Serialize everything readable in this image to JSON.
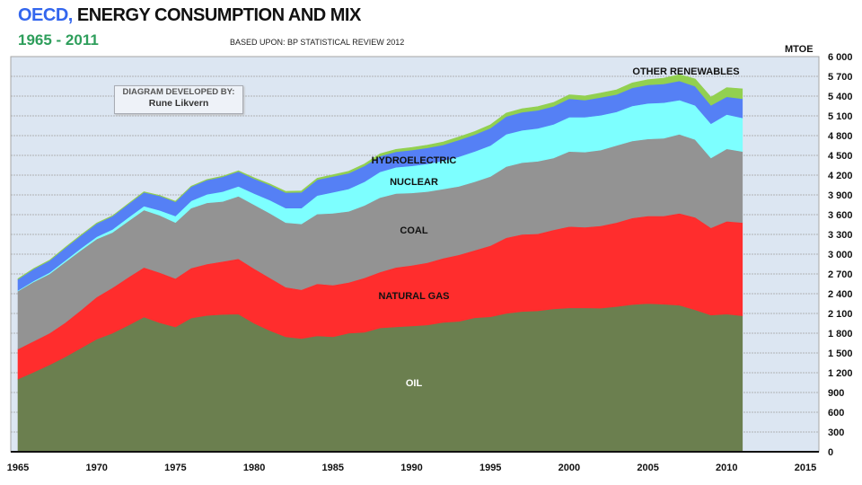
{
  "header": {
    "title_highlight": "OECD,",
    "title_rest": " ENERGY CONSUMPTION AND MIX",
    "period": "1965 - 2011",
    "source": "BASED UPON: BP STATISTICAL REVIEW 2012"
  },
  "credit": {
    "label": "DIAGRAM DEVELOPED BY:",
    "name": "Rune Likvern"
  },
  "chart_data": {
    "type": "area",
    "stacked": true,
    "title": "OECD, ENERGY CONSUMPTION AND MIX 1965 - 2011",
    "ylabel": "MTOE",
    "xlabel": "",
    "xlim": [
      1965,
      2015
    ],
    "ylim": [
      0,
      6000
    ],
    "x_ticks": [
      "1965",
      "1970",
      "1975",
      "1980",
      "1985",
      "1990",
      "1995",
      "2000",
      "2005",
      "2010",
      "2015"
    ],
    "y_ticks": [
      "0",
      "300",
      "600",
      "900",
      "1 200",
      "1 500",
      "1 800",
      "2 100",
      "2 400",
      "2 700",
      "3 000",
      "3 300",
      "3 600",
      "3 900",
      "4 200",
      "4 500",
      "4 800",
      "5 100",
      "5 400",
      "5 700",
      "6 000"
    ],
    "grid": true,
    "x": [
      1965,
      1966,
      1967,
      1968,
      1969,
      1970,
      1971,
      1972,
      1973,
      1974,
      1975,
      1976,
      1977,
      1978,
      1979,
      1980,
      1981,
      1982,
      1983,
      1984,
      1985,
      1986,
      1987,
      1988,
      1989,
      1990,
      1991,
      1992,
      1993,
      1994,
      1995,
      1996,
      1997,
      1998,
      1999,
      2000,
      2001,
      2002,
      2003,
      2004,
      2005,
      2006,
      2007,
      2008,
      2009,
      2010,
      2011
    ],
    "series": [
      {
        "name": "OIL",
        "color": "#6b7f4f",
        "values": [
          1105,
          1210,
          1320,
          1440,
          1575,
          1710,
          1800,
          1920,
          2045,
          1960,
          1895,
          2030,
          2070,
          2085,
          2090,
          1950,
          1840,
          1745,
          1720,
          1760,
          1745,
          1800,
          1815,
          1880,
          1895,
          1910,
          1925,
          1965,
          1980,
          2035,
          2050,
          2100,
          2130,
          2140,
          2170,
          2185,
          2185,
          2180,
          2205,
          2235,
          2250,
          2240,
          2225,
          2155,
          2075,
          2090,
          2065
        ]
      },
      {
        "name": "NATURAL GAS",
        "color": "#ff2d2d",
        "values": [
          455,
          470,
          480,
          520,
          575,
          640,
          690,
          730,
          755,
          760,
          735,
          760,
          780,
          805,
          840,
          830,
          800,
          755,
          740,
          790,
          785,
          770,
          825,
          850,
          905,
          920,
          945,
          975,
          1010,
          1025,
          1080,
          1150,
          1170,
          1170,
          1200,
          1235,
          1225,
          1250,
          1275,
          1315,
          1330,
          1340,
          1395,
          1405,
          1325,
          1410,
          1415
        ]
      },
      {
        "name": "COAL",
        "color": "#939393",
        "values": [
          880,
          900,
          900,
          920,
          910,
          880,
          840,
          850,
          870,
          870,
          850,
          910,
          930,
          910,
          950,
          970,
          980,
          980,
          1000,
          1060,
          1090,
          1080,
          1100,
          1130,
          1120,
          1100,
          1080,
          1050,
          1040,
          1040,
          1050,
          1080,
          1090,
          1100,
          1090,
          1140,
          1140,
          1150,
          1170,
          1170,
          1170,
          1180,
          1200,
          1180,
          1060,
          1100,
          1080
        ]
      },
      {
        "name": "NUCLEAR",
        "color": "#7dffff",
        "values": [
          10,
          15,
          20,
          25,
          30,
          35,
          45,
          55,
          60,
          75,
          100,
          110,
          130,
          150,
          150,
          170,
          200,
          220,
          240,
          280,
          320,
          340,
          360,
          390,
          400,
          410,
          420,
          430,
          450,
          460,
          470,
          490,
          490,
          500,
          510,
          520,
          530,
          530,
          510,
          530,
          540,
          540,
          520,
          520,
          520,
          520,
          510
        ]
      },
      {
        "name": "HYDROELECTRIC",
        "color": "#5580f5",
        "values": [
          170,
          180,
          180,
          190,
          195,
          200,
          200,
          205,
          210,
          220,
          215,
          215,
          215,
          225,
          225,
          225,
          230,
          235,
          240,
          240,
          240,
          240,
          240,
          240,
          235,
          240,
          245,
          240,
          255,
          255,
          265,
          270,
          275,
          275,
          275,
          280,
          260,
          270,
          265,
          275,
          280,
          285,
          290,
          290,
          280,
          270,
          290
        ]
      },
      {
        "name": "OTHER RENEWABLES",
        "color": "#92d050",
        "values": [
          8,
          8,
          8,
          8,
          8,
          8,
          8,
          8,
          8,
          8,
          9,
          9,
          10,
          10,
          12,
          15,
          17,
          19,
          21,
          23,
          25,
          28,
          31,
          34,
          37,
          40,
          42,
          44,
          46,
          48,
          50,
          52,
          54,
          56,
          58,
          60,
          63,
          66,
          70,
          75,
          80,
          88,
          97,
          110,
          125,
          140,
          150
        ]
      }
    ],
    "annotations": [
      "OIL",
      "NATURAL GAS",
      "COAL",
      "NUCLEAR",
      "HYDROELECTRIC",
      "OTHER RENEWABLES"
    ]
  }
}
